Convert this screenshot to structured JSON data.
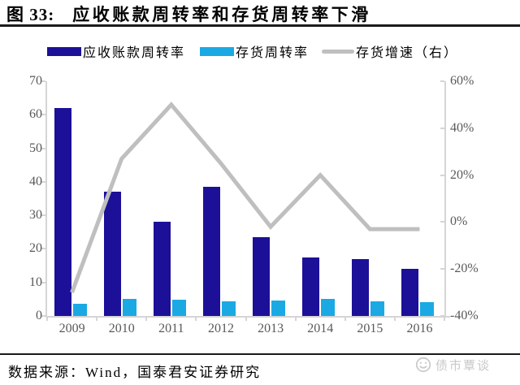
{
  "title": {
    "figure_label": "图 33:",
    "text": "应收账款周转率和存货周转率下滑"
  },
  "legend": {
    "items": [
      {
        "label": "应收账款周转率",
        "swatch": "navy-bar-swatch",
        "color": "#1c1098"
      },
      {
        "label": "存货周转率",
        "swatch": "cyan-bar-swatch",
        "color": "#1ba9e4"
      },
      {
        "label": "存货增速（右）",
        "swatch": "gray-line-swatch",
        "color": "#bfbfbf"
      }
    ]
  },
  "chart_data": {
    "type": "bar",
    "title": "应收账款周转率和存货周转率下滑",
    "categories": [
      "2009",
      "2010",
      "2011",
      "2012",
      "2013",
      "2014",
      "2015",
      "2016"
    ],
    "series": [
      {
        "name": "应收账款周转率",
        "render": "bar",
        "axis": "left",
        "values": [
          62,
          37,
          28,
          38.5,
          23.5,
          17.5,
          17,
          14
        ]
      },
      {
        "name": "存货周转率",
        "render": "bar",
        "axis": "left",
        "values": [
          3.7,
          5.2,
          4.9,
          4.4,
          4.6,
          5.0,
          4.4,
          4.2
        ]
      },
      {
        "name": "存货增速（右）",
        "render": "line",
        "axis": "right",
        "values": [
          -30,
          27,
          50,
          25,
          -2,
          20,
          -3,
          -3
        ]
      }
    ],
    "left_axis": {
      "min": 0,
      "max": 70,
      "step": 10,
      "tick_labels": [
        "0",
        "10",
        "20",
        "30",
        "40",
        "50",
        "60",
        "70"
      ]
    },
    "right_axis": {
      "min": -40,
      "max": 60,
      "step": 20,
      "tick_labels": [
        "-40%",
        "-20%",
        "0%",
        "20%",
        "40%",
        "60%"
      ]
    },
    "grid": false,
    "legend_position": "top"
  },
  "footer": {
    "source": "数据来源：Wind，国泰君安证券研究"
  },
  "watermark": {
    "icon": "smiley-face-icon",
    "text": "债市覃谈"
  },
  "colors": {
    "bar_primary": "#1c1098",
    "bar_secondary": "#1ba9e4",
    "line": "#bfbfbf",
    "axis_text": "#595959",
    "axis_line": "#d6d4d4",
    "rule": "#1a1a1a",
    "watermark": "#c8c8c8"
  }
}
